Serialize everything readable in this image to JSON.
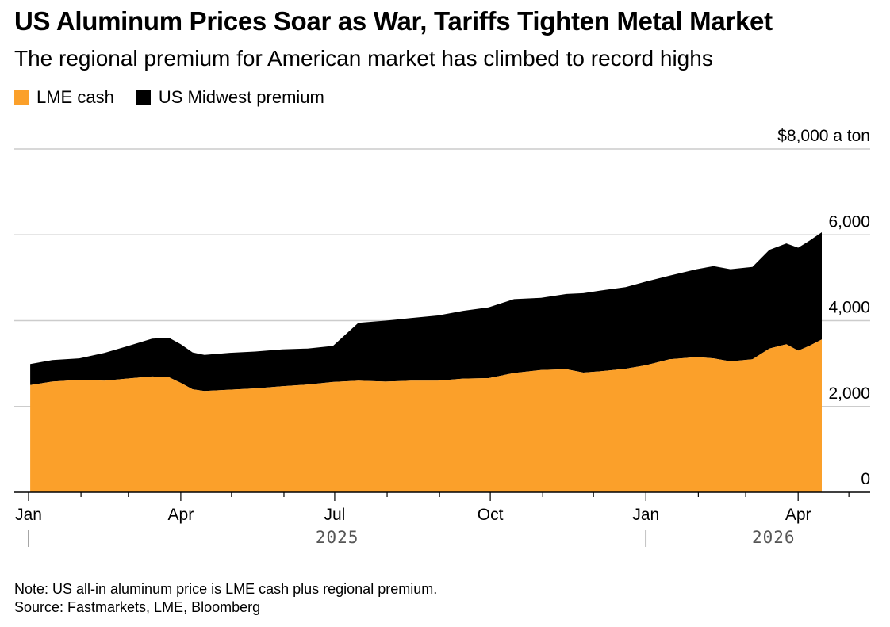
{
  "title": "US Aluminum Prices Soar as War, Tariffs Tighten Metal Market",
  "subtitle": "The regional premium for American market has climbed to record highs",
  "note": "Note: US all-in aluminum price is LME cash plus regional premium.",
  "source": "Source: Fastmarkets, LME, Bloomberg",
  "colors": {
    "lme": "#FBA02A",
    "premium": "#000000",
    "grid": "#cccccc",
    "axis": "#000000"
  },
  "chart_data": {
    "type": "area",
    "stacked": true,
    "title": "US Aluminum Prices Soar as War, Tariffs Tighten Metal Market",
    "ylabel_unit": "$8,000 a ton",
    "ylim": [
      0,
      8000
    ],
    "y_ticks": [
      {
        "value": 0,
        "label": "0"
      },
      {
        "value": 2000,
        "label": "2,000"
      },
      {
        "value": 4000,
        "label": "4,000"
      },
      {
        "value": 6000,
        "label": "6,000"
      },
      {
        "value": 8000,
        "label": "$8,000 a ton"
      }
    ],
    "x_domain": [
      "2025-01-01",
      "2026-05-15"
    ],
    "x_month_ticks": [
      {
        "date": "2025-01-01",
        "label": "Jan"
      },
      {
        "date": "2025-02-01",
        "label": ""
      },
      {
        "date": "2025-03-01",
        "label": ""
      },
      {
        "date": "2025-04-01",
        "label": "Apr"
      },
      {
        "date": "2025-05-01",
        "label": ""
      },
      {
        "date": "2025-06-01",
        "label": ""
      },
      {
        "date": "2025-07-01",
        "label": "Jul"
      },
      {
        "date": "2025-08-01",
        "label": ""
      },
      {
        "date": "2025-09-01",
        "label": ""
      },
      {
        "date": "2025-10-01",
        "label": "Oct"
      },
      {
        "date": "2025-11-01",
        "label": ""
      },
      {
        "date": "2025-12-01",
        "label": ""
      },
      {
        "date": "2026-01-01",
        "label": "Jan"
      },
      {
        "date": "2026-02-01",
        "label": ""
      },
      {
        "date": "2026-03-01",
        "label": ""
      },
      {
        "date": "2026-04-01",
        "label": "Apr"
      },
      {
        "date": "2026-05-01",
        "label": ""
      }
    ],
    "x_years": [
      {
        "date": "2025-01-01",
        "label": "2025"
      },
      {
        "date": "2026-01-01",
        "label": "2026"
      }
    ],
    "legend_position": "top-left",
    "series": [
      {
        "name": "LME cash",
        "color": "#FBA02A",
        "points": [
          [
            "2025-01-02",
            2500
          ],
          [
            "2025-01-15",
            2580
          ],
          [
            "2025-01-31",
            2620
          ],
          [
            "2025-02-15",
            2600
          ],
          [
            "2025-02-28",
            2650
          ],
          [
            "2025-03-15",
            2700
          ],
          [
            "2025-03-25",
            2680
          ],
          [
            "2025-04-01",
            2550
          ],
          [
            "2025-04-08",
            2400
          ],
          [
            "2025-04-15",
            2360
          ],
          [
            "2025-04-30",
            2390
          ],
          [
            "2025-05-15",
            2420
          ],
          [
            "2025-05-31",
            2470
          ],
          [
            "2025-06-15",
            2510
          ],
          [
            "2025-06-30",
            2570
          ],
          [
            "2025-07-15",
            2600
          ],
          [
            "2025-07-31",
            2580
          ],
          [
            "2025-08-15",
            2600
          ],
          [
            "2025-08-31",
            2600
          ],
          [
            "2025-09-15",
            2650
          ],
          [
            "2025-09-30",
            2660
          ],
          [
            "2025-10-15",
            2780
          ],
          [
            "2025-10-31",
            2850
          ],
          [
            "2025-11-15",
            2870
          ],
          [
            "2025-11-25",
            2790
          ],
          [
            "2025-12-05",
            2820
          ],
          [
            "2025-12-20",
            2880
          ],
          [
            "2026-01-01",
            2960
          ],
          [
            "2026-01-15",
            3100
          ],
          [
            "2026-01-31",
            3150
          ],
          [
            "2026-02-10",
            3120
          ],
          [
            "2026-02-20",
            3050
          ],
          [
            "2026-03-05",
            3100
          ],
          [
            "2026-03-15",
            3350
          ],
          [
            "2026-03-25",
            3450
          ],
          [
            "2026-04-01",
            3300
          ],
          [
            "2026-04-08",
            3420
          ],
          [
            "2026-04-15",
            3560
          ]
        ]
      },
      {
        "name": "US Midwest premium",
        "color": "#000000",
        "points": [
          [
            "2025-01-02",
            490
          ],
          [
            "2025-01-15",
            500
          ],
          [
            "2025-01-31",
            500
          ],
          [
            "2025-02-15",
            650
          ],
          [
            "2025-02-28",
            750
          ],
          [
            "2025-03-15",
            880
          ],
          [
            "2025-03-25",
            920
          ],
          [
            "2025-04-01",
            900
          ],
          [
            "2025-04-08",
            860
          ],
          [
            "2025-04-15",
            840
          ],
          [
            "2025-04-30",
            860
          ],
          [
            "2025-05-15",
            860
          ],
          [
            "2025-05-31",
            860
          ],
          [
            "2025-06-15",
            840
          ],
          [
            "2025-06-24",
            840
          ],
          [
            "2025-06-26",
            1350
          ],
          [
            "2025-07-15",
            1420
          ],
          [
            "2025-07-31",
            1460
          ],
          [
            "2025-08-15",
            1520
          ],
          [
            "2025-08-31",
            1580
          ],
          [
            "2025-09-15",
            1650
          ],
          [
            "2025-09-30",
            1720
          ],
          [
            "2025-10-15",
            1680
          ],
          [
            "2025-10-31",
            1750
          ],
          [
            "2025-11-15",
            1850
          ],
          [
            "2025-11-25",
            1880
          ],
          [
            "2025-12-05",
            1900
          ],
          [
            "2025-12-20",
            1950
          ],
          [
            "2026-01-01",
            1950
          ],
          [
            "2026-01-15",
            2050
          ],
          [
            "2026-01-31",
            2150
          ],
          [
            "2026-02-10",
            2150
          ],
          [
            "2026-02-20",
            2150
          ],
          [
            "2026-03-05",
            2300
          ],
          [
            "2026-03-15",
            2350
          ],
          [
            "2026-03-25",
            2400
          ],
          [
            "2026-04-01",
            2450
          ],
          [
            "2026-04-08",
            2500
          ],
          [
            "2026-04-15",
            2550
          ]
        ]
      }
    ]
  }
}
